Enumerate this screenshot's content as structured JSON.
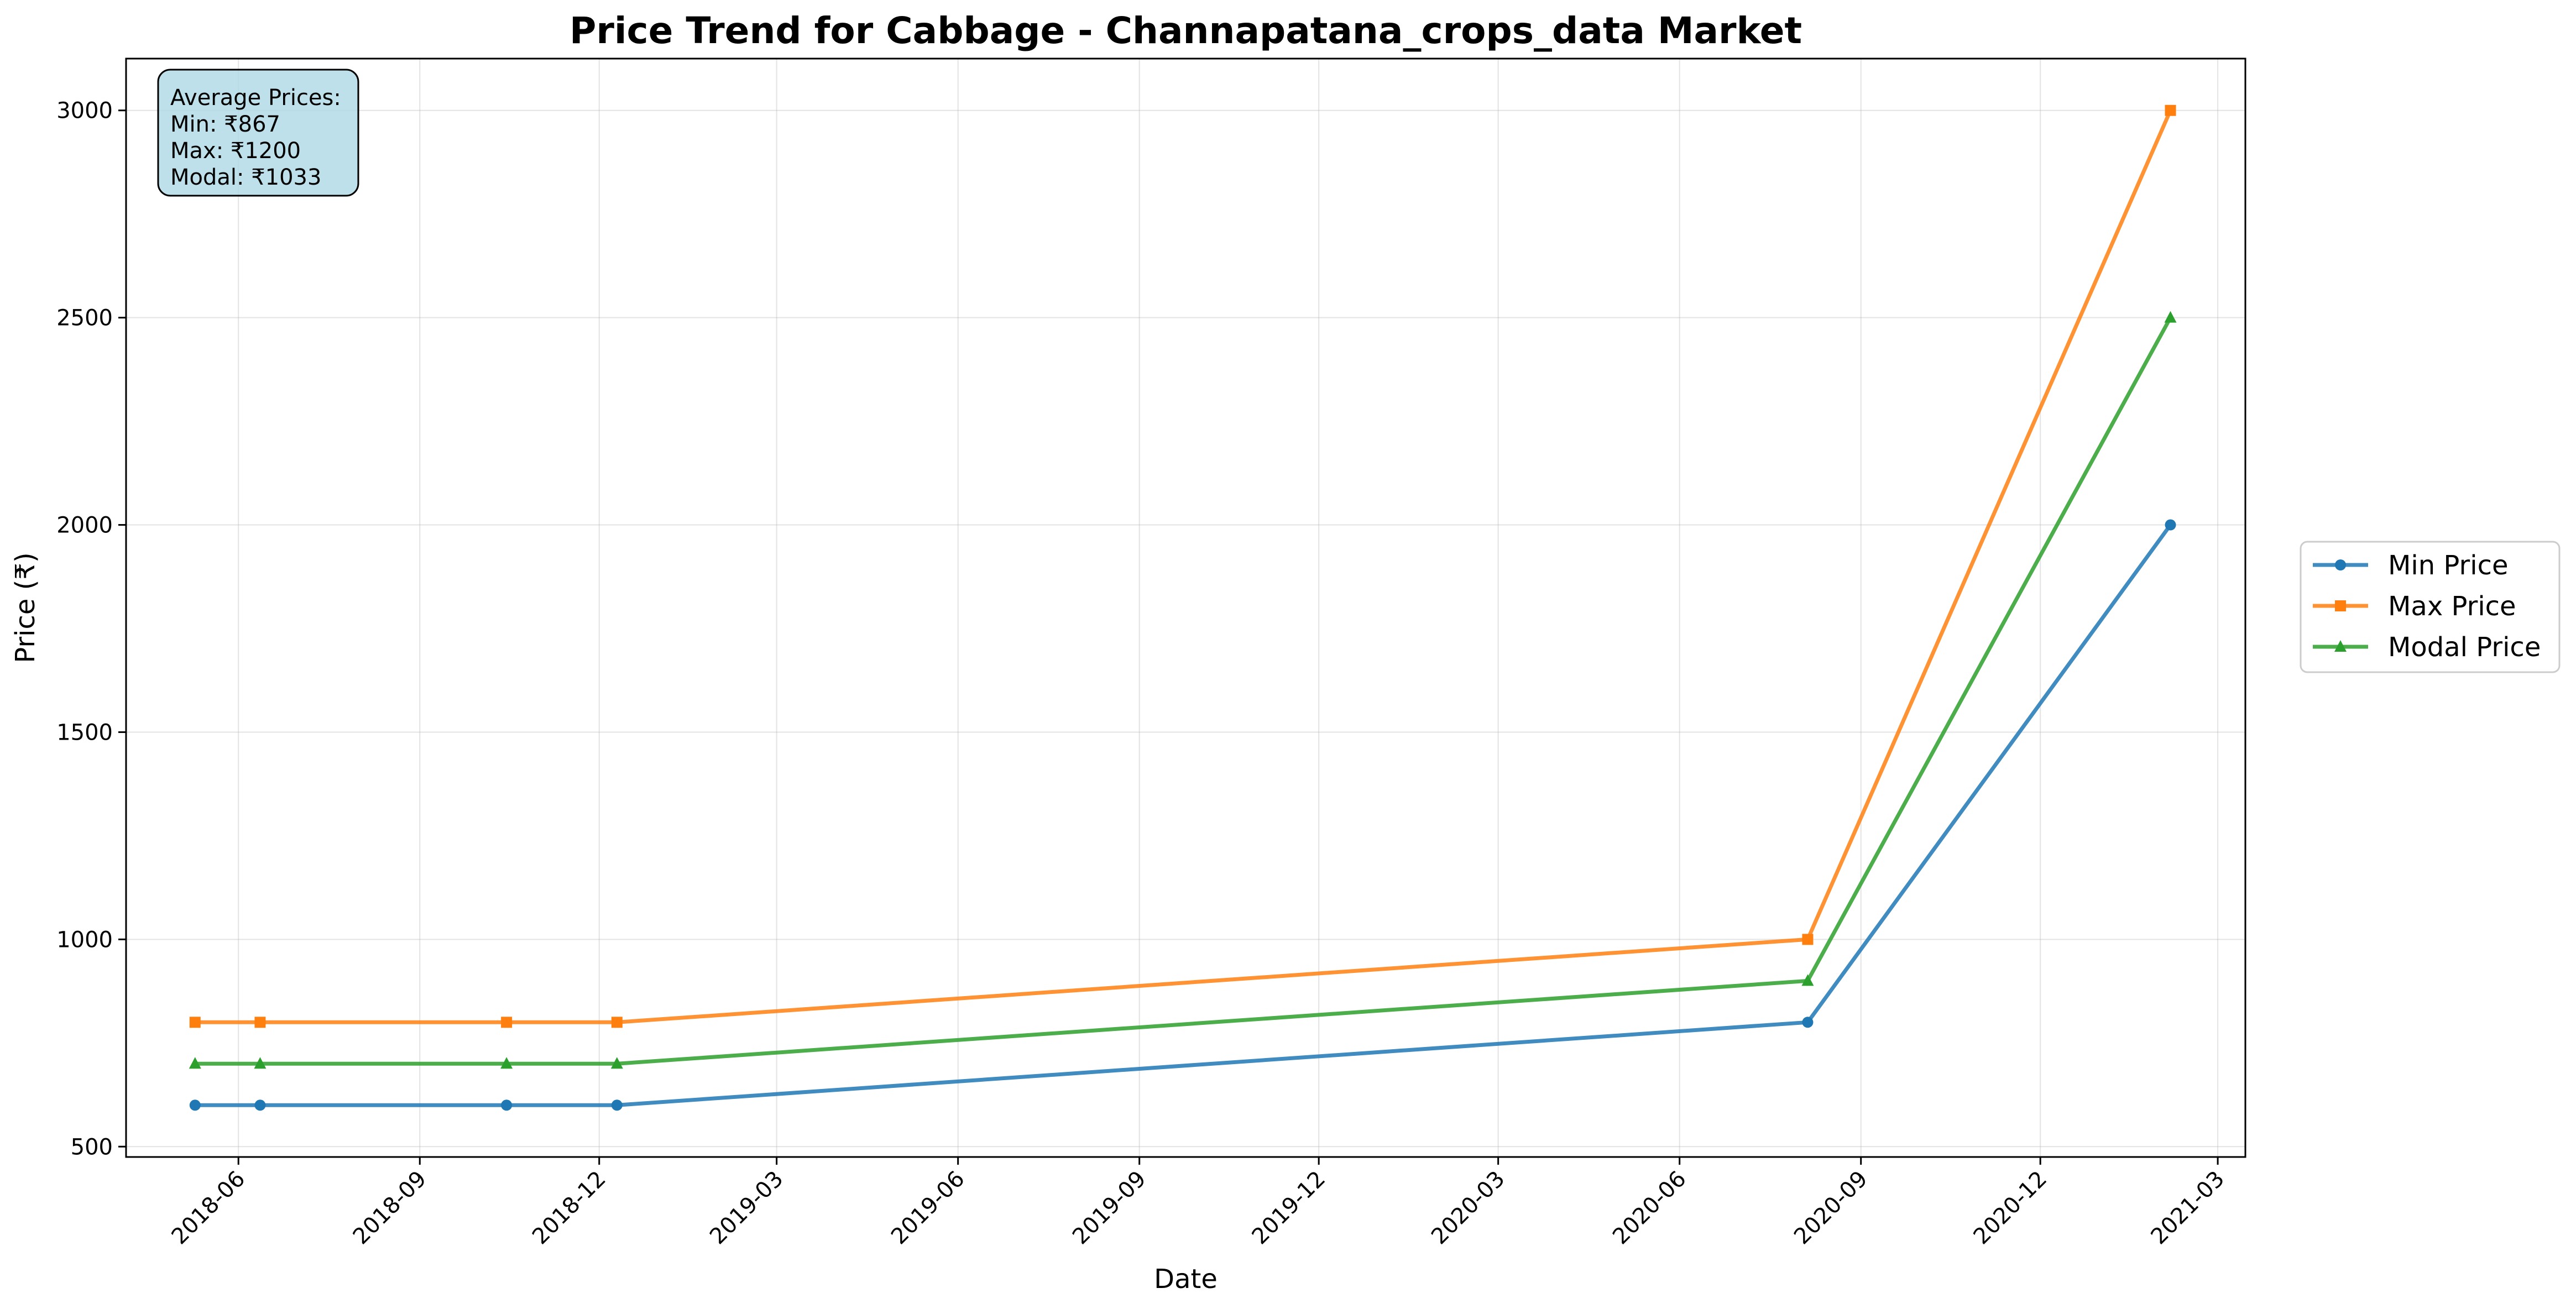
{
  "chart_data": {
    "type": "line",
    "title": "Price Trend for Cabbage - Channapatana_crops_data Market",
    "xlabel": "Date",
    "ylabel": "Price (₹)",
    "x": [
      "2018-05-10",
      "2018-06-12",
      "2018-10-15",
      "2018-12-10",
      "2020-08-05",
      "2021-02-05"
    ],
    "xlim": [
      "2018-04-05",
      "2021-03-15"
    ],
    "ylim": [
      475,
      3125
    ],
    "x_ticks": [
      "2018-06",
      "2018-09",
      "2018-12",
      "2019-03",
      "2019-06",
      "2019-09",
      "2019-12",
      "2020-03",
      "2020-06",
      "2020-09",
      "2020-12",
      "2021-03"
    ],
    "y_ticks": [
      500,
      1000,
      1500,
      2000,
      2500,
      3000
    ],
    "grid": true,
    "legend_position": "right",
    "series": [
      {
        "name": "Min Price",
        "color": "#1f77b4",
        "marker": "circle",
        "values": [
          600,
          600,
          600,
          600,
          800,
          2000
        ]
      },
      {
        "name": "Max Price",
        "color": "#ff7f0e",
        "marker": "square",
        "values": [
          800,
          800,
          800,
          800,
          1000,
          3000
        ]
      },
      {
        "name": "Modal Price",
        "color": "#2ca02c",
        "marker": "triangle",
        "values": [
          700,
          700,
          700,
          700,
          900,
          2500
        ]
      }
    ],
    "stats_box": {
      "lines": [
        "Average Prices:",
        "Min: ₹867",
        "Max: ₹1200",
        "Modal: ₹1033"
      ],
      "background": "#add8e6"
    }
  }
}
